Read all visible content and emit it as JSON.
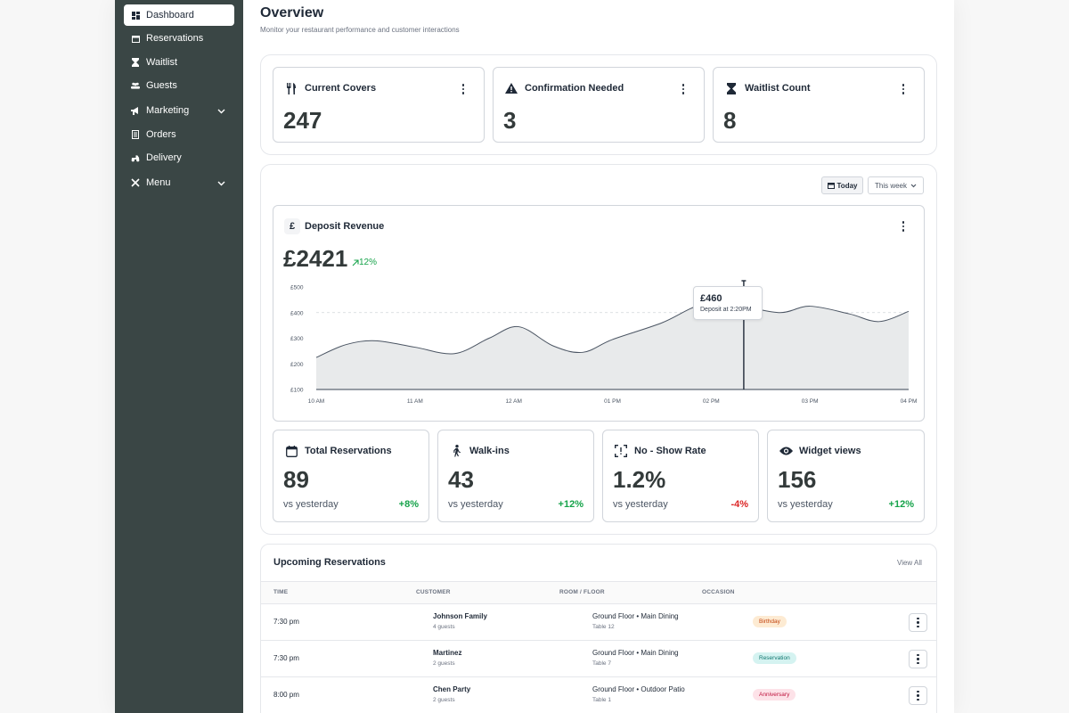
{
  "sidebar": {
    "items": [
      {
        "label": "Dashboard",
        "icon": "dashboard-icon",
        "active": true
      },
      {
        "label": "Reservations",
        "icon": "calendar-icon"
      },
      {
        "label": "Waitlist",
        "icon": "hourglass-icon"
      },
      {
        "label": "Guests",
        "icon": "users-icon"
      },
      {
        "label": "Marketing",
        "icon": "megaphone-icon",
        "expandable": true
      },
      {
        "label": "Orders",
        "icon": "receipt-icon"
      },
      {
        "label": "Delivery",
        "icon": "delivery-icon"
      },
      {
        "label": "Menu",
        "icon": "utensils-icon",
        "expandable": true
      }
    ]
  },
  "header": {
    "title": "Overview",
    "subtitle": "Monitor your restaurant performance and customer interactions"
  },
  "top_cards": [
    {
      "title": "Current Covers",
      "value": "247",
      "icon": "fork-knife-icon"
    },
    {
      "title": "Confirmation Needed",
      "value": "3",
      "icon": "warning-icon"
    },
    {
      "title": "Waitlist Count",
      "value": "8",
      "icon": "hourglass-icon"
    }
  ],
  "filters": {
    "today": "Today",
    "range": "This week"
  },
  "revenue": {
    "title": "Deposit Revenue",
    "currency_symbol": "£",
    "value": "£2421",
    "change": "12%",
    "tooltip": {
      "value": "£460",
      "label": "Deposit at 2:20PM"
    }
  },
  "chart_data": {
    "type": "area",
    "x_ticks": [
      "10 AM",
      "11 AM",
      "12 AM",
      "01 PM",
      "02 PM",
      "03 PM",
      "04 PM"
    ],
    "y_ticks": [
      "£500",
      "£400",
      "£300",
      "£200",
      "£100"
    ],
    "ylim": [
      100,
      500
    ],
    "points": [
      {
        "x": 0.0,
        "y": 225
      },
      {
        "x": 0.3,
        "y": 275
      },
      {
        "x": 0.6,
        "y": 290
      },
      {
        "x": 1.0,
        "y": 265
      },
      {
        "x": 1.4,
        "y": 240
      },
      {
        "x": 1.75,
        "y": 300
      },
      {
        "x": 2.05,
        "y": 345
      },
      {
        "x": 2.4,
        "y": 270
      },
      {
        "x": 2.7,
        "y": 245
      },
      {
        "x": 3.0,
        "y": 295
      },
      {
        "x": 3.5,
        "y": 360
      },
      {
        "x": 3.9,
        "y": 430
      },
      {
        "x": 4.3,
        "y": 425
      },
      {
        "x": 4.7,
        "y": 400
      },
      {
        "x": 5.0,
        "y": 425
      },
      {
        "x": 5.4,
        "y": 395
      },
      {
        "x": 5.7,
        "y": 365
      },
      {
        "x": 6.0,
        "y": 405
      }
    ],
    "highlight": {
      "x": 4.33,
      "y": 460
    },
    "reference_line": 400
  },
  "stat_cards": [
    {
      "title": "Total Reservations",
      "value": "89",
      "vs": "vs yesterday",
      "delta": "+8%",
      "trend": "up",
      "icon": "calendar-icon"
    },
    {
      "title": "Walk-ins",
      "value": "43",
      "vs": "vs yesterday",
      "delta": "+12%",
      "trend": "up",
      "icon": "walking-icon"
    },
    {
      "title": "No - Show Rate",
      "value": "1.2%",
      "vs": "vs yesterday",
      "delta": "-4%",
      "trend": "down",
      "icon": "scan-icon"
    },
    {
      "title": "Widget views",
      "value": "156",
      "vs": "vs yesterday",
      "delta": "+12%",
      "trend": "up",
      "icon": "eye-icon"
    }
  ],
  "reservations": {
    "title": "Upcoming Reservations",
    "view_all": "View All",
    "columns": [
      "TIME",
      "CUSTOMER",
      "ROOM / FLOOR",
      "OCCASION"
    ],
    "rows": [
      {
        "time": "7:30 pm",
        "name": "Johnson Family",
        "guests": "4 guests",
        "room": "Ground Floor • Main Dining",
        "table": "Table 12",
        "occasion": "Birthday",
        "badge_bg": "#fdebd3",
        "badge_fg": "#c2410c"
      },
      {
        "time": "7:30 pm",
        "name": "Martinez",
        "guests": "2 guests",
        "room": "Ground Floor • Main Dining",
        "table": "Table 7",
        "occasion": "Reservation",
        "badge_bg": "#d5f3f1",
        "badge_fg": "#0f766e"
      },
      {
        "time": "8:00 pm",
        "name": "Chen Party",
        "guests": "2 guests",
        "room": "Ground Floor • Outdoor Patio",
        "table": "Table 1",
        "occasion": "Anniversary",
        "badge_bg": "#fde2e8",
        "badge_fg": "#be123c"
      }
    ]
  }
}
